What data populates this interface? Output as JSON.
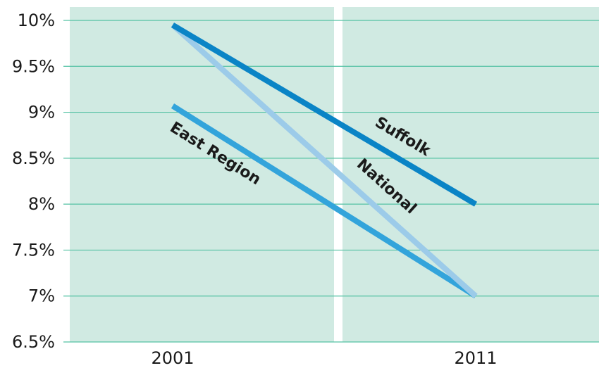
{
  "chart_data": {
    "type": "line",
    "title": "",
    "xlabel": "",
    "ylabel": "",
    "categories": [
      "2001",
      "2011"
    ],
    "ylim": [
      6.5,
      10
    ],
    "yticks": [
      6.5,
      7,
      7.5,
      8,
      8.5,
      9,
      9.5,
      10
    ],
    "ytick_labels": [
      "6.5%",
      "7%",
      "7.5%",
      "8%",
      "8.5%",
      "9%",
      "9.5%",
      "10%"
    ],
    "grid": true,
    "legend": "none",
    "series": [
      {
        "name": "Suffolk",
        "values": [
          9.95,
          8.0
        ],
        "color": "#0a84c6"
      },
      {
        "name": "National",
        "values": [
          9.95,
          7.0
        ],
        "color": "#9ccbe9"
      },
      {
        "name": "East Region",
        "values": [
          9.07,
          7.0
        ],
        "color": "#33a4db"
      }
    ],
    "background_color": "#d0eae2",
    "gridline_color": "#55c2a4"
  }
}
